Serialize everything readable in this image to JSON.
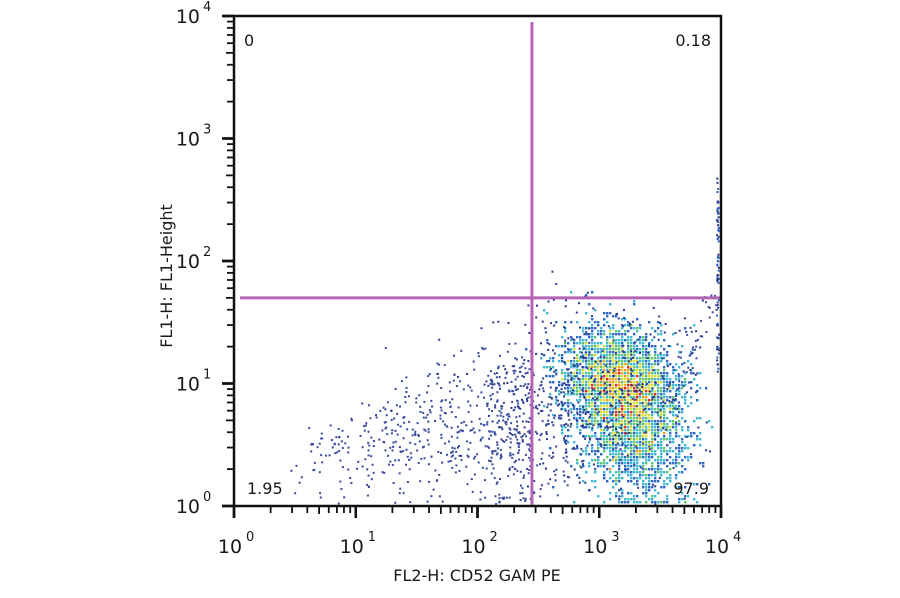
{
  "chart_data": {
    "type": "scatter",
    "subtype": "flow-cytometry-density-dot-plot",
    "title": "",
    "xlabel": "FL2-H: CD52 GAM PE",
    "ylabel": "FL1-H:   FL1-Height",
    "xscale": "log",
    "yscale": "log",
    "xlim": [
      1,
      10000
    ],
    "ylim": [
      1,
      10000
    ],
    "x_ticks": [
      {
        "base": "10",
        "exp": "0",
        "value": 1
      },
      {
        "base": "10",
        "exp": "1",
        "value": 10
      },
      {
        "base": "10",
        "exp": "2",
        "value": 100
      },
      {
        "base": "10",
        "exp": "3",
        "value": 1000
      },
      {
        "base": "10",
        "exp": "4",
        "value": 10000
      }
    ],
    "y_ticks": [
      {
        "base": "10",
        "exp": "0",
        "value": 1
      },
      {
        "base": "10",
        "exp": "1",
        "value": 10
      },
      {
        "base": "10",
        "exp": "2",
        "value": 100
      },
      {
        "base": "10",
        "exp": "3",
        "value": 1000
      },
      {
        "base": "10",
        "exp": "4",
        "value": 10000
      }
    ],
    "grid": false,
    "legend": null,
    "quadrant_gate": {
      "x_threshold": 280,
      "y_threshold": 50,
      "line_color": "#b565b5"
    },
    "quadrants": [
      {
        "position": "upper-left",
        "label": "0",
        "percent": 0
      },
      {
        "position": "upper-right",
        "label": "0.18",
        "percent": 0.18
      },
      {
        "position": "lower-left",
        "label": "1.95",
        "percent": 1.95
      },
      {
        "position": "lower-right",
        "label": "97.9",
        "percent": 97.9
      }
    ],
    "populations": [
      {
        "name": "main-cluster",
        "x_center": 1600,
        "y_center": 8,
        "x_spread_decades": 0.22,
        "y_spread_decades": 0.25,
        "density": "high",
        "quadrant": "lower-right"
      },
      {
        "name": "sparse-low-tail",
        "x_range": [
          3,
          300
        ],
        "y_range": [
          1,
          20
        ],
        "density": "low",
        "quadrant": "lower-left"
      },
      {
        "name": "right-edge-saturated",
        "x_value": 10000,
        "y_range": [
          20,
          400
        ],
        "density": "low",
        "quadrant": "upper-right/lower-right"
      }
    ],
    "colormap": [
      "#2b3a8f",
      "#2f66c8",
      "#3fb8d6",
      "#5cc46a",
      "#d8e03a",
      "#f0a020",
      "#e8281c"
    ]
  }
}
